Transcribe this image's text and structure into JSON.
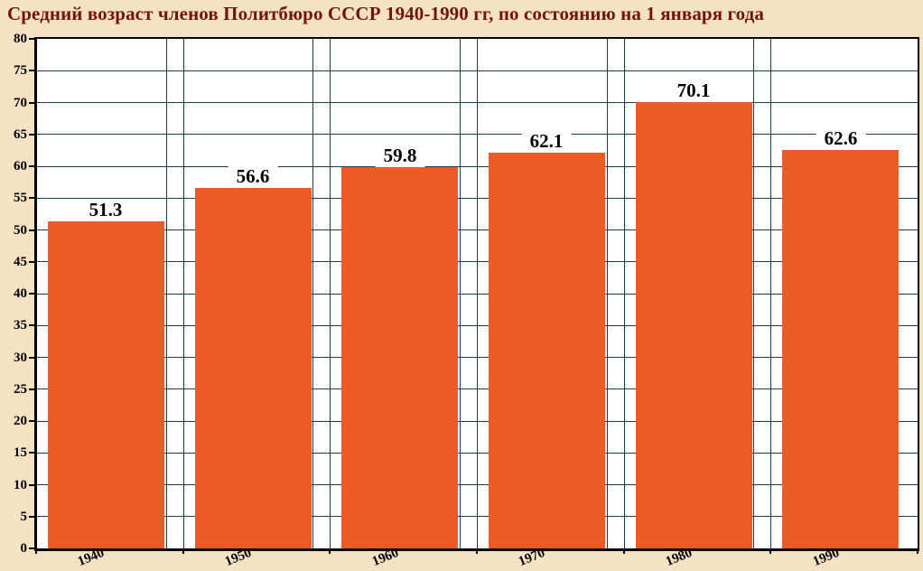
{
  "title": "Средний возраст членов Политбюро СССР 1940-1990 гг, по состоянию на 1 января года",
  "colors": {
    "background": "#F5E2C4",
    "plot_background": "#FFFFFF",
    "bar": "#EA5B26",
    "gridline": "#1C3A50",
    "axis": "#000000",
    "title_text": "#721407",
    "label_text": "#000000"
  },
  "chart_data": {
    "type": "bar",
    "title": "Средний возраст членов Политбюро СССР 1940-1990 гг, по состоянию на 1 января года",
    "categories": [
      "1940",
      "1950",
      "1960",
      "1970",
      "1980",
      "1990"
    ],
    "values": [
      51.3,
      56.6,
      59.8,
      62.1,
      70.1,
      62.6
    ],
    "bar_labels": [
      "51.3",
      "56.6",
      "59.8",
      "62.1",
      "70.1",
      "62.6"
    ],
    "xlabel": "",
    "ylabel": "",
    "ylim": [
      0,
      80
    ],
    "ytick_step": 5,
    "grid": true,
    "legend": "none",
    "bar_color": "#EA5B26"
  }
}
